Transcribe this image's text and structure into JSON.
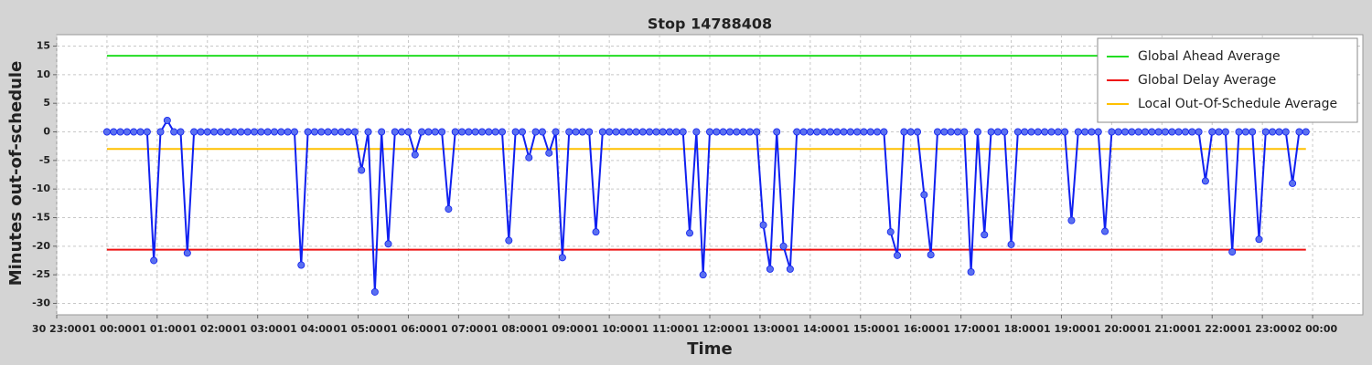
{
  "chart_data": {
    "type": "line",
    "title": "Stop 14788408",
    "xlabel": "Time",
    "ylabel": "Minutes out-of-schedule",
    "x": [
      "01 00:00",
      "01 00:08",
      "01 00:16",
      "01 00:24",
      "01 00:32",
      "01 00:40",
      "01 00:48",
      "01 00:56",
      "01 01:04",
      "01 01:12",
      "01 01:20",
      "01 01:28",
      "01 01:36",
      "01 01:44",
      "01 01:52",
      "01 02:00",
      "01 02:08",
      "01 02:16",
      "01 02:24",
      "01 02:32",
      "01 02:40",
      "01 02:48",
      "01 02:56",
      "01 03:04",
      "01 03:12",
      "01 03:20",
      "01 03:28",
      "01 03:36",
      "01 03:44",
      "01 03:52",
      "01 04:00",
      "01 04:08",
      "01 04:16",
      "01 04:24",
      "01 04:32",
      "01 04:40",
      "01 04:48",
      "01 04:56",
      "01 05:04",
      "01 05:12",
      "01 05:20",
      "01 05:28",
      "01 05:36",
      "01 05:44",
      "01 05:52",
      "01 06:00",
      "01 06:08",
      "01 06:16",
      "01 06:24",
      "01 06:32",
      "01 06:40",
      "01 06:48",
      "01 06:56",
      "01 07:04",
      "01 07:12",
      "01 07:20",
      "01 07:28",
      "01 07:36",
      "01 07:44",
      "01 07:52",
      "01 08:00",
      "01 08:08",
      "01 08:16",
      "01 08:24",
      "01 08:32",
      "01 08:40",
      "01 08:48",
      "01 08:56",
      "01 09:04",
      "01 09:12",
      "01 09:20",
      "01 09:28",
      "01 09:36",
      "01 09:44",
      "01 09:52",
      "01 10:00",
      "01 10:08",
      "01 10:16",
      "01 10:24",
      "01 10:32",
      "01 10:40",
      "01 10:48",
      "01 10:56",
      "01 11:04",
      "01 11:12",
      "01 11:20",
      "01 11:28",
      "01 11:36",
      "01 11:44",
      "01 11:52",
      "01 12:00",
      "01 12:08",
      "01 12:16",
      "01 12:24",
      "01 12:32",
      "01 12:40",
      "01 12:48",
      "01 12:56",
      "01 13:04",
      "01 13:12",
      "01 13:20",
      "01 13:28",
      "01 13:36",
      "01 13:44",
      "01 13:52",
      "01 14:00",
      "01 14:08",
      "01 14:16",
      "01 14:24",
      "01 14:32",
      "01 14:40",
      "01 14:48",
      "01 14:56",
      "01 15:04",
      "01 15:12",
      "01 15:20",
      "01 15:28",
      "01 15:36",
      "01 15:44",
      "01 15:52",
      "01 16:00",
      "01 16:08",
      "01 16:16",
      "01 16:24",
      "01 16:32",
      "01 16:40",
      "01 16:48",
      "01 16:56",
      "01 17:04",
      "01 17:12",
      "01 17:20",
      "01 17:28",
      "01 17:36",
      "01 17:44",
      "01 17:52",
      "01 18:00",
      "01 18:08",
      "01 18:16",
      "01 18:24",
      "01 18:32",
      "01 18:40",
      "01 18:48",
      "01 18:56",
      "01 19:04",
      "01 19:12",
      "01 19:20",
      "01 19:28",
      "01 19:36",
      "01 19:44",
      "01 19:52",
      "01 20:00",
      "01 20:08",
      "01 20:16",
      "01 20:24",
      "01 20:32",
      "01 20:40",
      "01 20:48",
      "01 20:56",
      "01 21:04",
      "01 21:12",
      "01 21:20",
      "01 21:28",
      "01 21:36",
      "01 21:44",
      "01 21:52",
      "01 22:00",
      "01 22:08",
      "01 22:16",
      "01 22:24",
      "01 22:32",
      "01 22:40",
      "01 22:48",
      "01 22:56",
      "01 23:04",
      "01 23:12",
      "01 23:20",
      "01 23:28",
      "01 23:36",
      "01 23:44",
      "01 23:52"
    ],
    "series": [
      {
        "color": "#1020f0",
        "marker_color": "#5a70f0",
        "values": [
          0,
          0,
          0,
          0,
          0,
          0,
          0,
          -22.5,
          0,
          2,
          0,
          0,
          -21.2,
          0,
          0,
          0,
          0,
          0,
          0,
          0,
          0,
          0,
          0,
          0,
          0,
          0,
          0,
          0,
          0,
          -23.3,
          0,
          0,
          0,
          0,
          0,
          0,
          0,
          0,
          -6.7,
          0,
          -28,
          0,
          -19.6,
          0,
          0,
          0,
          -4,
          0,
          0,
          0,
          0,
          -13.5,
          0,
          0,
          0,
          0,
          0,
          0,
          0,
          0,
          -19,
          0,
          0,
          -4.5,
          0,
          0,
          -3.7,
          0,
          -22,
          0,
          0,
          0,
          0,
          -17.5,
          0,
          0,
          0,
          0,
          0,
          0,
          0,
          0,
          0,
          0,
          0,
          0,
          0,
          -17.7,
          0,
          -25,
          0,
          0,
          0,
          0,
          0,
          0,
          0,
          0,
          -16.3,
          -24,
          0,
          -20,
          -24,
          0,
          0,
          0,
          0,
          0,
          0,
          0,
          0,
          0,
          0,
          0,
          0,
          0,
          0,
          -17.5,
          -21.6,
          0,
          0,
          0,
          -11,
          -21.5,
          0,
          0,
          0,
          0,
          0,
          -24.5,
          0,
          -18,
          0,
          0,
          0,
          -19.7,
          0,
          0,
          0,
          0,
          0,
          0,
          0,
          0,
          -15.5,
          0,
          0,
          0,
          0,
          -17.4,
          0,
          0,
          0,
          0,
          0,
          0,
          0,
          0,
          0,
          0,
          0,
          0,
          0,
          0,
          -8.6,
          0,
          0,
          0,
          -21,
          0,
          0,
          0,
          -18.8,
          0,
          0,
          0,
          0,
          -9,
          0,
          0
        ]
      }
    ],
    "reference_lines": [
      {
        "name": "Global Ahead Average",
        "color": "#22dd22",
        "value": 13.3
      },
      {
        "name": "Global Delay Average",
        "color": "#ee1111",
        "value": -20.6
      },
      {
        "name": "Local Out-Of-Schedule Average",
        "color": "#ffc000",
        "value": -3
      }
    ],
    "xlim": [
      "30 23:00",
      "02 01:00"
    ],
    "xticks": [
      "30 23:00",
      "01 00:00",
      "01 01:00",
      "01 02:00",
      "01 03:00",
      "01 04:00",
      "01 05:00",
      "01 06:00",
      "01 07:00",
      "01 08:00",
      "01 09:00",
      "01 10:00",
      "01 11:00",
      "01 12:00",
      "01 13:00",
      "01 14:00",
      "01 15:00",
      "01 16:00",
      "01 17:00",
      "01 18:00",
      "01 19:00",
      "01 20:00",
      "01 21:00",
      "01 22:00",
      "01 23:00",
      "02 00:00"
    ],
    "ylim": [
      -32,
      17
    ],
    "yticks": [
      15,
      10,
      5,
      0,
      -5,
      -10,
      -15,
      -20,
      -25,
      -30
    ],
    "grid": true,
    "legend": "top-right"
  }
}
